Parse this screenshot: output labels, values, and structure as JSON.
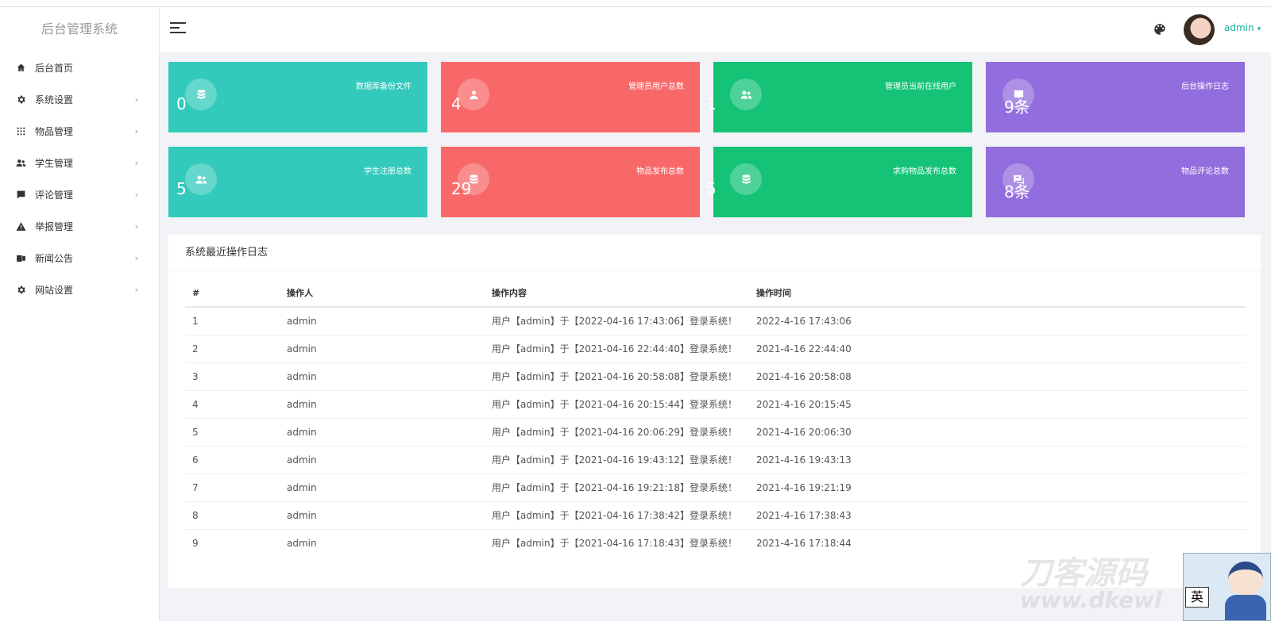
{
  "app": {
    "title": "后台管理系统"
  },
  "sidebar": {
    "items": [
      {
        "label": "后台首页",
        "icon": "home-icon",
        "arrow": ""
      },
      {
        "label": "系统设置",
        "icon": "gear-icon",
        "arrow": "›"
      },
      {
        "label": "物品管理",
        "icon": "grid-icon",
        "arrow": "›"
      },
      {
        "label": "学生管理",
        "icon": "users-icon",
        "arrow": "›"
      },
      {
        "label": "评论管理",
        "icon": "comment-icon",
        "arrow": "›"
      },
      {
        "label": "举报管理",
        "icon": "warning-icon",
        "arrow": "›"
      },
      {
        "label": "新闻公告",
        "icon": "news-icon",
        "arrow": "›"
      },
      {
        "label": "网站设置",
        "icon": "gear-icon",
        "arrow": "›"
      }
    ]
  },
  "header": {
    "user": "admin",
    "caret": "▾",
    "icons": [
      "menu-icon",
      "palette-icon"
    ]
  },
  "colors": {
    "teal": "#33cabb",
    "red": "#f96868",
    "green": "#15c377",
    "purple": "#926dde",
    "accent_text": "#1ab39a"
  },
  "cards": [
    {
      "title": "数据库备份文件",
      "value": "0",
      "icon": "database-icon",
      "color": "#33cabb"
    },
    {
      "title": "管理员用户总数",
      "value": "4",
      "icon": "user-icon",
      "color": "#f96868"
    },
    {
      "title": "管理员当前在线用户",
      "value": "1",
      "icon": "users-icon",
      "color": "#15c377"
    },
    {
      "title": "后台操作日志",
      "value": "9条",
      "icon": "log-icon",
      "color": "#926dde"
    },
    {
      "title": "学生注册总数",
      "value": "5",
      "icon": "users-icon",
      "color": "#33cabb"
    },
    {
      "title": "物品发布总数",
      "value": "29",
      "icon": "database-icon",
      "color": "#f96868"
    },
    {
      "title": "求购物品发布总数",
      "value": "5",
      "icon": "database-icon",
      "color": "#15c377"
    },
    {
      "title": "物品评论总数",
      "value": "8条",
      "icon": "chat-icon",
      "color": "#926dde"
    }
  ],
  "log": {
    "title": "系统最近操作日志",
    "headers": [
      "#",
      "操作人",
      "操作内容",
      "操作时间"
    ],
    "rows": [
      [
        "1",
        "admin",
        "用户【admin】于【2022-04-16 17:43:06】登录系统！",
        "2022-4-16 17:43:06"
      ],
      [
        "2",
        "admin",
        "用户【admin】于【2021-04-16 22:44:40】登录系统！",
        "2021-4-16 22:44:40"
      ],
      [
        "3",
        "admin",
        "用户【admin】于【2021-04-16 20:58:08】登录系统！",
        "2021-4-16 20:58:08"
      ],
      [
        "4",
        "admin",
        "用户【admin】于【2021-04-16 20:15:44】登录系统！",
        "2021-4-16 20:15:45"
      ],
      [
        "5",
        "admin",
        "用户【admin】于【2021-04-16 20:06:29】登录系统！",
        "2021-4-16 20:06:30"
      ],
      [
        "6",
        "admin",
        "用户【admin】于【2021-04-16 19:43:12】登录系统！",
        "2021-4-16 19:43:13"
      ],
      [
        "7",
        "admin",
        "用户【admin】于【2021-04-16 19:21:18】登录系统！",
        "2021-4-16 19:21:19"
      ],
      [
        "8",
        "admin",
        "用户【admin】于【2021-04-16 17:38:42】登录系统！",
        "2021-4-16 17:38:43"
      ],
      [
        "9",
        "admin",
        "用户【admin】于【2021-04-16 17:18:43】登录系统！",
        "2021-4-16 17:18:44"
      ]
    ]
  },
  "watermark": {
    "text": "刀客源码",
    "url_text": "www.dkewl",
    "ime_char": "英"
  }
}
